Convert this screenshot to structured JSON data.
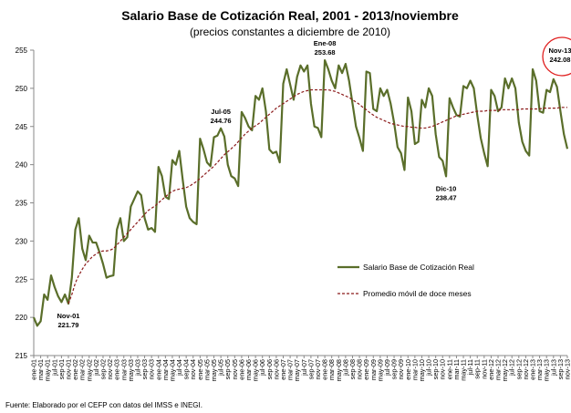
{
  "chart_data": {
    "type": "line",
    "title": "Salario Base de Cotización Real, 2001 - 2013/noviembre",
    "subtitle": "(precios constantes a diciembre de 2010)",
    "source": "Fuente: Elaborado por el CEFP con datos del IMSS e INEGI.",
    "categories": [
      "ene-01",
      null,
      "mar-01",
      null,
      "may-01",
      null,
      "jul-01",
      null,
      "sep-01",
      null,
      "nov-01",
      null,
      "ene-02",
      null,
      "mar-02",
      null,
      "may-02",
      null,
      "jul-02",
      null,
      "sep-02",
      null,
      "nov-02",
      null,
      "ene-03",
      null,
      "mar-03",
      null,
      "may-03",
      null,
      "jul-03",
      null,
      "sep-03",
      null,
      "nov-03",
      null,
      "ene-04",
      null,
      "mar-04",
      null,
      "may-04",
      null,
      "jul-04",
      null,
      "sep-04",
      null,
      "nov-04",
      null,
      "ene-05",
      null,
      "mar-05",
      null,
      "may-05",
      null,
      "jul-05",
      null,
      "sep-05",
      null,
      "nov-05",
      null,
      "ene-06",
      null,
      "mar-06",
      null,
      "may-06",
      null,
      "jul-06",
      null,
      "sep-06",
      null,
      "nov-06",
      null,
      "ene-07",
      null,
      "mar-07",
      null,
      "may-07",
      null,
      "jul-07",
      null,
      "sep-07",
      null,
      "nov-07",
      null,
      "ene-08",
      null,
      "mar-08",
      null,
      "may-08",
      null,
      "jul-08",
      null,
      "sep-08",
      null,
      "nov-08",
      null,
      "ene-09",
      null,
      "mar-09",
      null,
      "may-09",
      null,
      "jul-09",
      null,
      "sep-09",
      null,
      "nov-09",
      null,
      "ene-10",
      null,
      "mar-10",
      null,
      "may-10",
      null,
      "jul-10",
      null,
      "sep-10",
      null,
      "nov-10",
      null,
      "ene-11",
      null,
      "mar-11",
      null,
      "may-11",
      null,
      "jul-11",
      null,
      "sep-11",
      null,
      "nov-11",
      null,
      "ene-12",
      null,
      "mar-12",
      null,
      "may-12",
      null,
      "jul-12",
      null,
      "sep-12",
      null,
      "nov-12",
      null,
      "ene-13",
      null,
      "mar-13",
      null,
      "may-13",
      null,
      "jul-13",
      null,
      "sep-13",
      null,
      "nov-13"
    ],
    "series": [
      {
        "name": "Salario Base de Cotización Real",
        "color": "#5a6e2a",
        "dash": false,
        "values": [
          220,
          218.9,
          219.5,
          223,
          222.3,
          225.5,
          224,
          222.8,
          222,
          223,
          221.79,
          225.2,
          231.5,
          233,
          229,
          227.5,
          230.7,
          229.8,
          229.8,
          228.5,
          227,
          225.2,
          225.4,
          225.5,
          231.5,
          233,
          230,
          230.5,
          234.5,
          235.5,
          236.5,
          236,
          233,
          231.5,
          231.7,
          231.2,
          239.7,
          238.5,
          235.8,
          235.5,
          240.6,
          240,
          241.8,
          238,
          234.5,
          233,
          232.5,
          232.2,
          243.4,
          242,
          240.3,
          239.8,
          243.6,
          243.8,
          244.76,
          243.7,
          240,
          238.5,
          238.2,
          237.2,
          246.9,
          246.1,
          245,
          244.5,
          249,
          248.5,
          250,
          247,
          242,
          241.5,
          241.7,
          240.3,
          250.6,
          252.5,
          250.5,
          248.5,
          251.5,
          253,
          252.2,
          253,
          248,
          245,
          244.8,
          243.6,
          253.68,
          252.5,
          251,
          250,
          253,
          252,
          253.2,
          251,
          248,
          245,
          243.5,
          241.8,
          252.2,
          252,
          247.3,
          247,
          250,
          249,
          249.8,
          248,
          245.5,
          242.3,
          241.5,
          239.3,
          248.8,
          247,
          242.7,
          243,
          248.5,
          247.5,
          250,
          249,
          244,
          241,
          240.5,
          238.47,
          248.7,
          247.5,
          246.5,
          246.3,
          250.3,
          250,
          251,
          250,
          246.5,
          243.5,
          241.5,
          239.8,
          249.8,
          249,
          247,
          247.5,
          251.3,
          250,
          251.3,
          250,
          245.5,
          243,
          241.8,
          241.2,
          252.5,
          251,
          247,
          246.8,
          249.8,
          249.5,
          251.2,
          250.2,
          247,
          244,
          242.08
        ]
      },
      {
        "name": "Promedio móvil de doce meses",
        "color": "#8b1a1a",
        "dash": true,
        "values": [
          null,
          null,
          null,
          null,
          null,
          null,
          null,
          null,
          null,
          null,
          221.8,
          223,
          224.5,
          225.5,
          226.3,
          227,
          227.5,
          228,
          228.3,
          228.6,
          228.7,
          228.7,
          228.8,
          229,
          229.5,
          230,
          230.5,
          231,
          231.5,
          232,
          232.5,
          233,
          233.5,
          234,
          234.3,
          234.6,
          235,
          235.4,
          235.8,
          236.2,
          236.5,
          236.7,
          236.8,
          236.9,
          237,
          237.2,
          237.5,
          237.8,
          238.2,
          238.6,
          239,
          239.4,
          239.8,
          240.3,
          240.8,
          241.3,
          241.7,
          242.1,
          242.5,
          243,
          243.5,
          244,
          244.4,
          244.8,
          245.1,
          245.4,
          245.8,
          246.2,
          246.6,
          247,
          247.4,
          247.7,
          248,
          248.3,
          248.6,
          248.9,
          249.2,
          249.4,
          249.6,
          249.7,
          249.8,
          249.8,
          249.8,
          249.8,
          249.8,
          249.8,
          249.7,
          249.6,
          249.4,
          249.2,
          249,
          248.8,
          248.5,
          248.2,
          247.9,
          247.5,
          247.2,
          246.8,
          246.5,
          246.2,
          246,
          245.8,
          245.6,
          245.4,
          245.3,
          245.2,
          245.1,
          245,
          245,
          244.9,
          244.9,
          244.8,
          244.8,
          244.8,
          244.9,
          245,
          245.2,
          245.4,
          245.6,
          245.8,
          246,
          246.2,
          246.4,
          246.5,
          246.6,
          246.7,
          246.8,
          246.9,
          247,
          247,
          247,
          247.1,
          247.1,
          247.1,
          247.1,
          247.2,
          247.2,
          247.2,
          247.2,
          247.2,
          247.2,
          247.3,
          247.3,
          247.3,
          247.3,
          247.3,
          247.3,
          247.4,
          247.4,
          247.4,
          247.4,
          247.4,
          247.5,
          247.5,
          247.5
        ]
      }
    ],
    "annotations": [
      {
        "text": "Nov-01",
        "value": 221.79
      },
      {
        "text": "Jul-05",
        "value": 244.76
      },
      {
        "text": "Ene-08",
        "value": 253.68
      },
      {
        "text": "Dic-10",
        "value": 238.47
      },
      {
        "text": "Nov-13",
        "value": 242.08
      }
    ],
    "ylim": [
      215,
      255
    ],
    "yticks": [
      215,
      220,
      225,
      230,
      235,
      240,
      245,
      250,
      255
    ],
    "grid": false
  }
}
